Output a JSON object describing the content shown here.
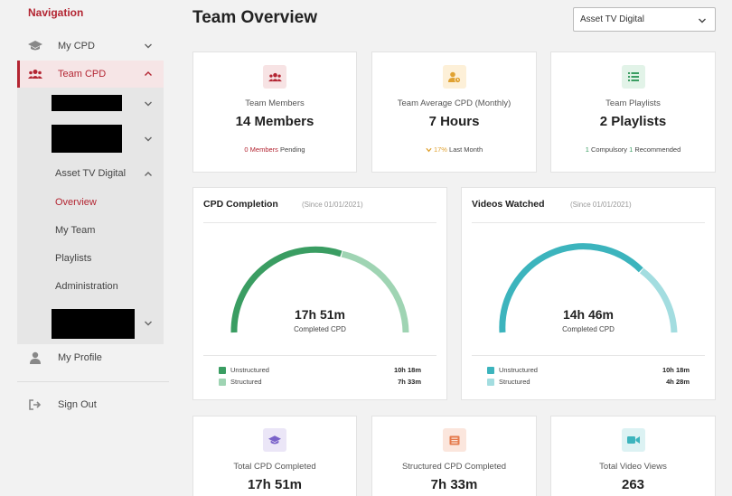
{
  "sidebar": {
    "title": "Navigation",
    "my_cpd": "My CPD",
    "team_cpd": "Team CPD",
    "asset_tv": "Asset TV Digital",
    "overview": "Overview",
    "my_team": "My Team",
    "playlists": "Playlists",
    "administration": "Administration",
    "my_profile": "My Profile",
    "sign_out": "Sign Out"
  },
  "header": {
    "title": "Team Overview",
    "select_value": "Asset TV Digital"
  },
  "stats_top": [
    {
      "label": "Team Members",
      "value": "14 Members",
      "sub_highlight": "0 Members",
      "sub_rest": "Pending"
    },
    {
      "label": "Team Average CPD (Monthly)",
      "value": "7 Hours",
      "sub_highlight": "17%",
      "sub_rest": "Last Month"
    },
    {
      "label": "Team Playlists",
      "value": "2 Playlists",
      "sub_a_num": "1",
      "sub_a_text": "Compulsory",
      "sub_b_num": "1",
      "sub_b_text": "Recommended"
    }
  ],
  "cpd_panel": {
    "title": "CPD Completion",
    "since": "(Since 01/01/2021)",
    "value": "17h 51m",
    "label": "Completed CPD",
    "legend": [
      {
        "name": "Unstructured",
        "value": "10h 18m"
      },
      {
        "name": "Structured",
        "value": "7h 33m"
      }
    ]
  },
  "videos_panel": {
    "title": "Videos Watched",
    "since": "(Since 01/01/2021)",
    "value": "14h 46m",
    "label": "Completed CPD",
    "legend": [
      {
        "name": "Unstructured",
        "value": "10h 18m"
      },
      {
        "name": "Structured",
        "value": "4h 28m"
      }
    ]
  },
  "stats_bottom": [
    {
      "label": "Total CPD Completed",
      "value": "17h 51m"
    },
    {
      "label": "Structured CPD Completed",
      "value": "7h 33m"
    },
    {
      "label": "Total Video Views",
      "value": "263"
    }
  ],
  "colors": {
    "brand": "#b32532",
    "cpd_unstructured": "#3a9d62",
    "cpd_structured": "#9fd4b3",
    "video_unstructured": "#3cb4bd",
    "video_structured": "#a3dde0"
  }
}
